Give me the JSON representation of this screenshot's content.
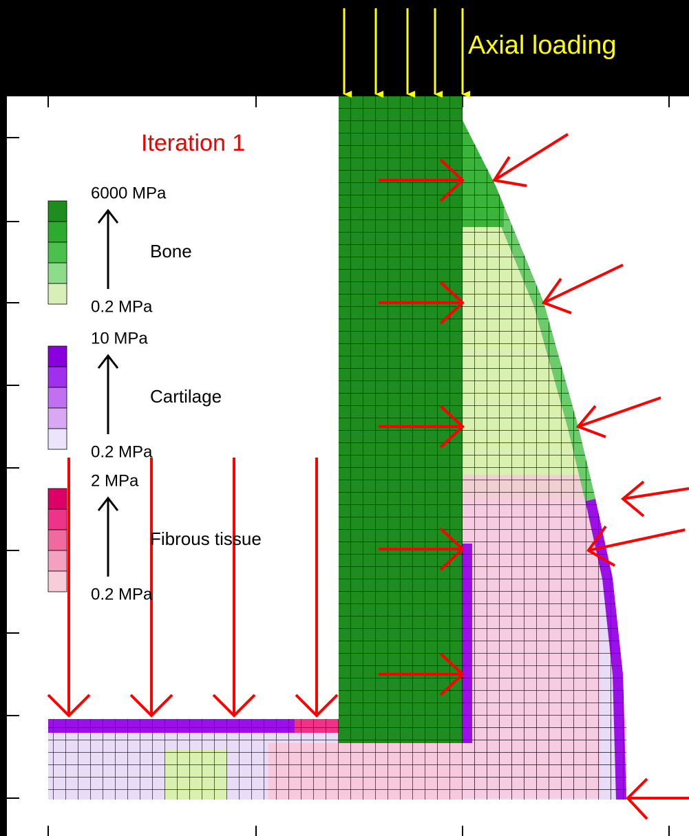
{
  "header": {
    "title": "Axial loading"
  },
  "legend": {
    "title": "Iteration 1",
    "groups": [
      {
        "max": "6000 MPa",
        "name": "Bone",
        "min": "0.2 MPa"
      },
      {
        "max": "10 MPa",
        "name": "Cartilage",
        "min": "0.2 MPa"
      },
      {
        "max": "2 MPa",
        "name": "Fibrous tissue",
        "min": "0.2 MPa"
      }
    ]
  }
}
